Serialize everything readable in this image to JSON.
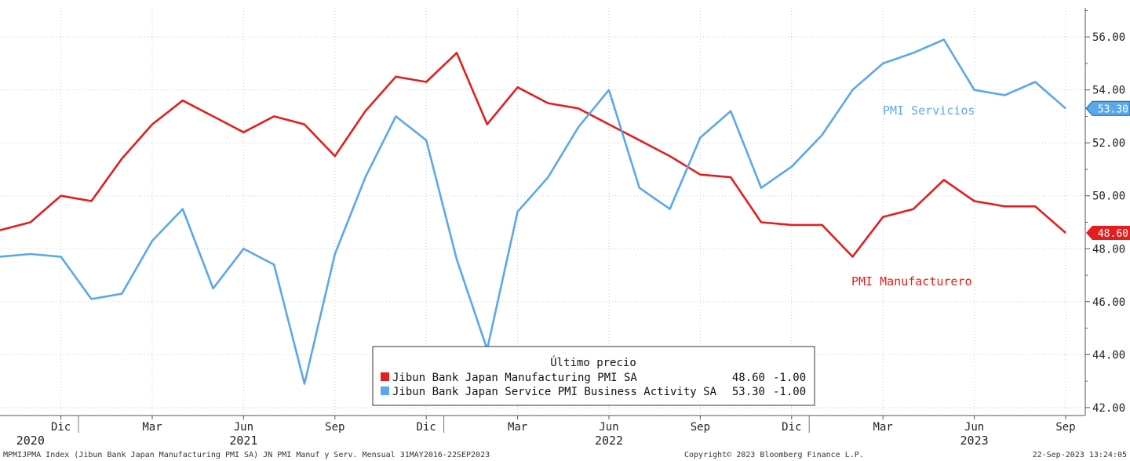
{
  "chart_data": {
    "type": "line",
    "y_ticks": [
      "42.00",
      "44.00",
      "46.00",
      "48.00",
      "50.00",
      "52.00",
      "54.00",
      "56.00"
    ],
    "ylim": [
      41.7,
      57.1
    ],
    "grid": true,
    "x_ticks": [
      {
        "label": "Dic",
        "i": 2
      },
      {
        "label": "Mar",
        "i": 5
      },
      {
        "label": "Jun",
        "i": 8
      },
      {
        "label": "Sep",
        "i": 11
      },
      {
        "label": "Dic",
        "i": 14
      },
      {
        "label": "Mar",
        "i": 17
      },
      {
        "label": "Jun",
        "i": 20
      },
      {
        "label": "Sep",
        "i": 23
      },
      {
        "label": "Dic",
        "i": 26
      },
      {
        "label": "Mar",
        "i": 29
      },
      {
        "label": "Jun",
        "i": 32
      },
      {
        "label": "Sep",
        "i": 35
      }
    ],
    "years": [
      {
        "label": "2020",
        "i": 1
      },
      {
        "label": "2021",
        "i": 8
      },
      {
        "label": "2022",
        "i": 20
      },
      {
        "label": "2023",
        "i": 32
      }
    ],
    "x": [
      "2020-10",
      "2020-11",
      "2020-12",
      "2021-01",
      "2021-02",
      "2021-03",
      "2021-04",
      "2021-05",
      "2021-06",
      "2021-07",
      "2021-08",
      "2021-09",
      "2021-10",
      "2021-11",
      "2021-12",
      "2022-01",
      "2022-02",
      "2022-03",
      "2022-04",
      "2022-05",
      "2022-06",
      "2022-07",
      "2022-08",
      "2022-09",
      "2022-10",
      "2022-11",
      "2022-12",
      "2023-01",
      "2023-02",
      "2023-03",
      "2023-04",
      "2023-05",
      "2023-06",
      "2023-07",
      "2023-08",
      "2023-09"
    ],
    "series": [
      {
        "name": "Jibun Bank Japan Manufacturing PMI SA",
        "color": "#e31e1e",
        "last": "48.60",
        "change": "-1.00",
        "values": [
          48.7,
          49.0,
          50.0,
          49.8,
          51.4,
          52.7,
          53.6,
          53.0,
          52.4,
          53.0,
          52.7,
          51.5,
          53.2,
          54.5,
          54.3,
          55.4,
          52.7,
          54.1,
          53.5,
          53.3,
          52.7,
          52.1,
          51.5,
          50.8,
          50.7,
          49.0,
          48.9,
          48.9,
          47.7,
          49.2,
          49.5,
          50.6,
          49.8,
          49.6,
          49.6,
          48.6
        ]
      },
      {
        "name": "Jibun Bank Japan Service PMI Business Activity SA",
        "color": "#5aa8ea",
        "last": "53.30",
        "change": "-1.00",
        "values": [
          47.7,
          47.8,
          47.7,
          46.1,
          46.3,
          48.3,
          49.5,
          46.5,
          48.0,
          47.4,
          42.9,
          47.8,
          50.7,
          53.0,
          52.1,
          47.6,
          44.2,
          49.4,
          50.7,
          52.6,
          54.0,
          50.3,
          49.5,
          52.2,
          53.2,
          50.3,
          51.1,
          52.3,
          54.0,
          55.0,
          55.4,
          55.9,
          54.0,
          53.8,
          54.3,
          53.3
        ]
      }
    ],
    "annotations": [
      {
        "text": "PMI Servicios",
        "color": "#5aa8ea"
      },
      {
        "text": "PMI Manufacturero",
        "color": "#e31e1e"
      }
    ],
    "legend": {
      "title": "Último precio",
      "placement": "bottom-center"
    }
  },
  "footer": {
    "left": "MPMIJPMA Index (Jibun Bank Japan Manufacturing PMI SA) JN PMI Manuf y Serv.  Mensual 31MAY2016-22SEP2023",
    "center": "Copyright© 2023 Bloomberg Finance L.P.",
    "right": "22-Sep-2023 13:24:05"
  }
}
